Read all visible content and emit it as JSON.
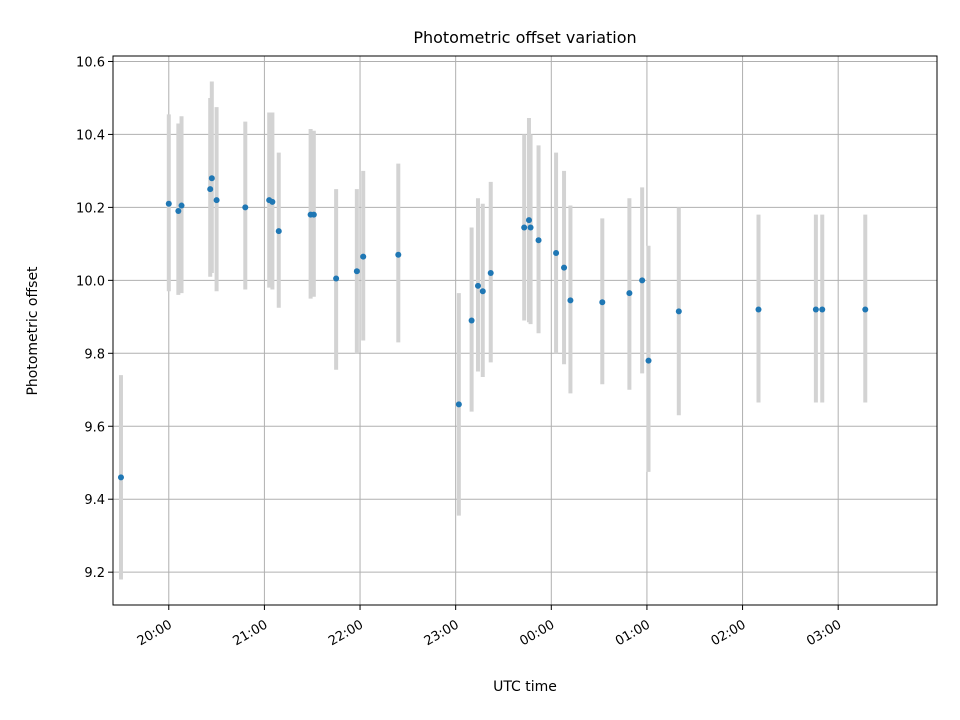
{
  "chart_data": {
    "type": "scatter",
    "title": "Photometric offset variation",
    "xlabel": "UTC time",
    "ylabel": "Photometric offset",
    "x_axis_type": "time",
    "xlim": [
      "19:25",
      "28:02"
    ],
    "ylim": [
      9.11,
      10.615
    ],
    "grid": true,
    "x_ticks": [
      "20:00",
      "21:00",
      "22:00",
      "23:00",
      "00:00",
      "01:00",
      "02:00",
      "03:00"
    ],
    "y_ticks": [
      "9.2",
      "9.4",
      "9.6",
      "9.8",
      "10.0",
      "10.2",
      "10.4",
      "10.6"
    ],
    "colors": {
      "point": "#1f77b4",
      "errorbar": "#d3d3d3",
      "grid": "#b0b0b0"
    },
    "points": [
      {
        "x": "19:30",
        "y": 9.46,
        "ylow": 9.18,
        "yhigh": 9.74
      },
      {
        "x": "20:00",
        "y": 10.21,
        "ylow": 9.97,
        "yhigh": 10.455
      },
      {
        "x": "20:06",
        "y": 10.19,
        "ylow": 9.96,
        "yhigh": 10.43
      },
      {
        "x": "20:08",
        "y": 10.205,
        "ylow": 9.965,
        "yhigh": 10.45
      },
      {
        "x": "20:26",
        "y": 10.25,
        "ylow": 10.01,
        "yhigh": 10.5
      },
      {
        "x": "20:27",
        "y": 10.28,
        "ylow": 10.02,
        "yhigh": 10.545
      },
      {
        "x": "20:30",
        "y": 10.22,
        "ylow": 9.97,
        "yhigh": 10.475
      },
      {
        "x": "20:48",
        "y": 10.2,
        "ylow": 9.975,
        "yhigh": 10.435
      },
      {
        "x": "21:03",
        "y": 10.22,
        "ylow": 9.98,
        "yhigh": 10.46
      },
      {
        "x": "21:05",
        "y": 10.215,
        "ylow": 9.975,
        "yhigh": 10.46
      },
      {
        "x": "21:09",
        "y": 10.135,
        "ylow": 9.925,
        "yhigh": 10.35
      },
      {
        "x": "21:29",
        "y": 10.18,
        "ylow": 9.95,
        "yhigh": 10.415
      },
      {
        "x": "21:31",
        "y": 10.18,
        "ylow": 9.955,
        "yhigh": 10.41
      },
      {
        "x": "21:45",
        "y": 10.005,
        "ylow": 9.755,
        "yhigh": 10.25
      },
      {
        "x": "21:58",
        "y": 10.025,
        "ylow": 9.8,
        "yhigh": 10.25
      },
      {
        "x": "22:02",
        "y": 10.065,
        "ylow": 9.835,
        "yhigh": 10.3
      },
      {
        "x": "22:24",
        "y": 10.07,
        "ylow": 9.83,
        "yhigh": 10.32
      },
      {
        "x": "23:02",
        "y": 9.66,
        "ylow": 9.355,
        "yhigh": 9.965
      },
      {
        "x": "23:10",
        "y": 9.89,
        "ylow": 9.64,
        "yhigh": 10.145
      },
      {
        "x": "23:14",
        "y": 9.985,
        "ylow": 9.75,
        "yhigh": 10.225
      },
      {
        "x": "23:17",
        "y": 9.97,
        "ylow": 9.735,
        "yhigh": 10.21
      },
      {
        "x": "23:22",
        "y": 10.02,
        "ylow": 9.775,
        "yhigh": 10.27
      },
      {
        "x": "23:43",
        "y": 10.145,
        "ylow": 9.89,
        "yhigh": 10.4
      },
      {
        "x": "23:46",
        "y": 10.165,
        "ylow": 9.885,
        "yhigh": 10.445
      },
      {
        "x": "23:47",
        "y": 10.145,
        "ylow": 9.88,
        "yhigh": 10.4
      },
      {
        "x": "23:52",
        "y": 10.11,
        "ylow": 9.855,
        "yhigh": 10.37
      },
      {
        "x": "00:03",
        "y": 10.075,
        "ylow": 9.8,
        "yhigh": 10.35
      },
      {
        "x": "00:08",
        "y": 10.035,
        "ylow": 9.77,
        "yhigh": 10.3
      },
      {
        "x": "00:12",
        "y": 9.945,
        "ylow": 9.69,
        "yhigh": 10.205
      },
      {
        "x": "00:32",
        "y": 9.94,
        "ylow": 9.715,
        "yhigh": 10.17
      },
      {
        "x": "00:49",
        "y": 9.965,
        "ylow": 9.7,
        "yhigh": 10.225
      },
      {
        "x": "00:57",
        "y": 10.0,
        "ylow": 9.745,
        "yhigh": 10.255
      },
      {
        "x": "01:01",
        "y": 9.78,
        "ylow": 9.475,
        "yhigh": 10.095
      },
      {
        "x": "01:20",
        "y": 9.915,
        "ylow": 9.63,
        "yhigh": 10.2
      },
      {
        "x": "02:10",
        "y": 9.92,
        "ylow": 9.665,
        "yhigh": 10.18
      },
      {
        "x": "02:46",
        "y": 9.92,
        "ylow": 9.665,
        "yhigh": 10.18
      },
      {
        "x": "02:50",
        "y": 9.92,
        "ylow": 9.665,
        "yhigh": 10.18
      },
      {
        "x": "03:17",
        "y": 9.92,
        "ylow": 9.665,
        "yhigh": 10.18
      }
    ]
  }
}
